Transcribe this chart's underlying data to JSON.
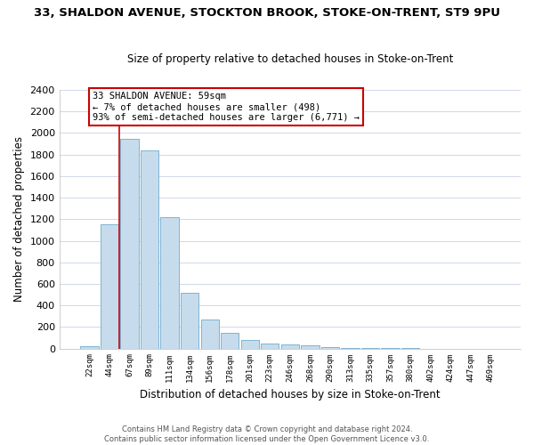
{
  "title": "33, SHALDON AVENUE, STOCKTON BROOK, STOKE-ON-TRENT, ST9 9PU",
  "subtitle": "Size of property relative to detached houses in Stoke-on-Trent",
  "xlabel": "Distribution of detached houses by size in Stoke-on-Trent",
  "ylabel": "Number of detached properties",
  "bar_labels": [
    "22sqm",
    "44sqm",
    "67sqm",
    "89sqm",
    "111sqm",
    "134sqm",
    "156sqm",
    "178sqm",
    "201sqm",
    "223sqm",
    "246sqm",
    "268sqm",
    "290sqm",
    "313sqm",
    "335sqm",
    "357sqm",
    "380sqm",
    "402sqm",
    "424sqm",
    "447sqm",
    "469sqm"
  ],
  "bar_values": [
    25,
    1150,
    1950,
    1840,
    1220,
    520,
    265,
    145,
    80,
    50,
    35,
    30,
    10,
    5,
    2,
    1,
    1,
    0,
    0,
    0,
    0
  ],
  "bar_color": "#c6dcec",
  "bar_edge_color": "#7fb3d3",
  "property_line_idx": 2,
  "property_line_color": "#cc0000",
  "ylim": [
    0,
    2400
  ],
  "yticks": [
    0,
    200,
    400,
    600,
    800,
    1000,
    1200,
    1400,
    1600,
    1800,
    2000,
    2200,
    2400
  ],
  "annotation_line1": "33 SHALDON AVENUE: 59sqm",
  "annotation_line2": "← 7% of detached houses are smaller (498)",
  "annotation_line3": "93% of semi-detached houses are larger (6,771) →",
  "annotation_box_color": "#ffffff",
  "annotation_box_edge": "#cc0000",
  "footer_line1": "Contains HM Land Registry data © Crown copyright and database right 2024.",
  "footer_line2": "Contains public sector information licensed under the Open Government Licence v3.0.",
  "background_color": "#ffffff",
  "grid_color": "#d0d8e8"
}
